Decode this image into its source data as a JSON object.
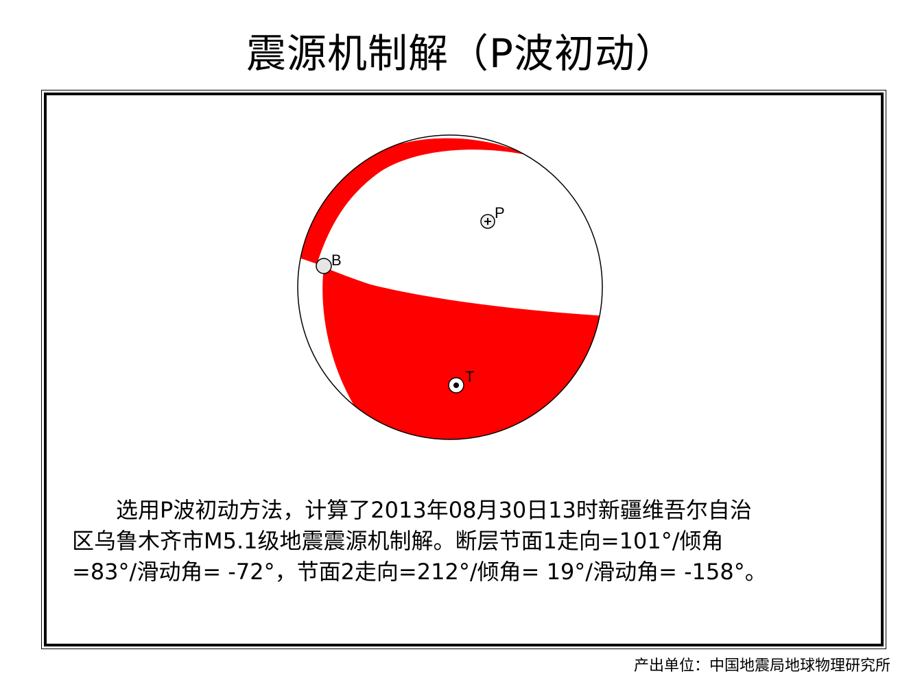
{
  "title": "震源机制解（P波初动）",
  "beachball": {
    "compression_color": "#ff0000",
    "dilatation_color": "#ffffff",
    "outline_color": "#000000",
    "axes": {
      "p_label": "P",
      "t_label": "T",
      "b_label": "B"
    }
  },
  "description": "　　选用P波初动方法，计算了2013年08月30日13时新疆维吾尔自治\n区乌鲁木齐市M5.1级地震震源机制解。断层节面1走向=101°/倾角\n=83°/滑动角= -72°，节面2走向=212°/倾角= 19°/滑动角= -158°。",
  "credit": "产出单位：中国地震局地球物理研究所"
}
